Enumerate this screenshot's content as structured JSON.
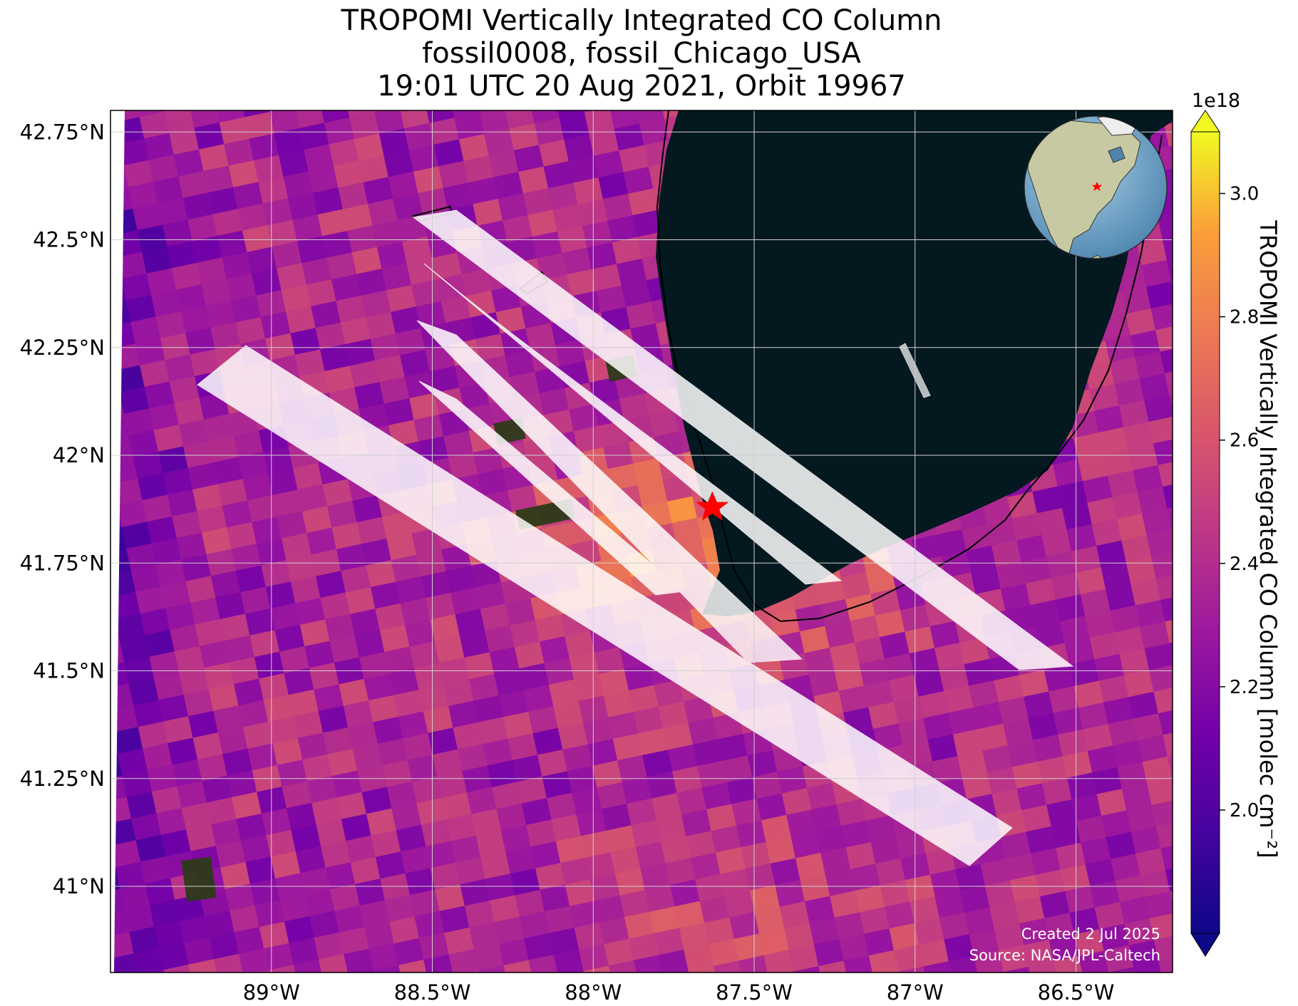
{
  "title": {
    "line1": "TROPOMI Vertically Integrated CO Column",
    "line2": "fossil0008, fossil_Chicago_USA",
    "line3": "19:01 UTC 20 Aug 2021, Orbit 19967"
  },
  "map": {
    "lon_range": [
      -89.5,
      -86.2
    ],
    "lat_range": [
      40.8,
      42.8
    ],
    "lon_ticks": [
      {
        "value": -89.0,
        "label": "89°W"
      },
      {
        "value": -88.5,
        "label": "88.5°W"
      },
      {
        "value": -88.0,
        "label": "88°W"
      },
      {
        "value": -87.5,
        "label": "87.5°W"
      },
      {
        "value": -87.0,
        "label": "87°W"
      },
      {
        "value": -86.5,
        "label": "86.5°W"
      }
    ],
    "lat_ticks": [
      {
        "value": 42.75,
        "label": "42.75°N"
      },
      {
        "value": 42.5,
        "label": "42.5°N"
      },
      {
        "value": 42.25,
        "label": "42.25°N"
      },
      {
        "value": 42.0,
        "label": "42°N"
      },
      {
        "value": 41.75,
        "label": "41.75°N"
      },
      {
        "value": 41.5,
        "label": "41.5°N"
      },
      {
        "value": 41.25,
        "label": "41.25°N"
      },
      {
        "value": 41.0,
        "label": "41°N"
      }
    ],
    "gridlines": true,
    "basemap": "satellite imagery with Lake Michigan",
    "target_marker": {
      "name": "fossil_Chicago_USA",
      "lon": -87.63,
      "lat": 41.88,
      "color": "#ff0000"
    },
    "credit": {
      "created": "Created 2 Jul 2025",
      "source": "Source: NASA/JPL-Caltech"
    },
    "inset_globe": {
      "center": "North America",
      "marker_color": "#ff0000"
    }
  },
  "colorbar": {
    "label": "TROPOMI Vertically Integrated CO Column [molec cm⁻²]",
    "offset_label": "1e18",
    "colormap": "plasma",
    "range": [
      1.8,
      3.1
    ],
    "extend": "both",
    "ticks": [
      {
        "value": 2.0,
        "label": "2.0"
      },
      {
        "value": 2.2,
        "label": "2.2"
      },
      {
        "value": 2.4,
        "label": "2.4"
      },
      {
        "value": 2.6,
        "label": "2.6"
      },
      {
        "value": 2.8,
        "label": "2.8"
      },
      {
        "value": 3.0,
        "label": "3.0"
      }
    ]
  }
}
